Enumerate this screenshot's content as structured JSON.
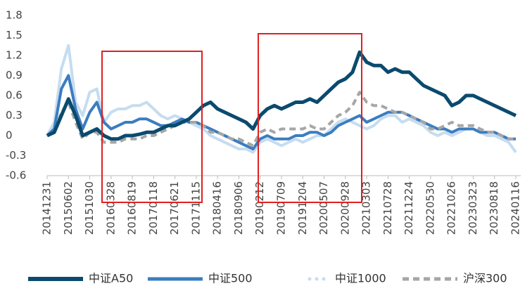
{
  "chart_data": {
    "type": "line",
    "categories": [
      "20141231",
      null,
      null,
      "20150602",
      null,
      null,
      "20151030",
      null,
      null,
      "20160328",
      null,
      null,
      "20160819",
      null,
      null,
      "20170118",
      null,
      null,
      "20170621",
      null,
      null,
      "20171115",
      null,
      null,
      "20180416",
      null,
      null,
      "20180906",
      null,
      null,
      "20190212",
      null,
      null,
      "20190709",
      null,
      null,
      "20191204",
      null,
      null,
      "20200507",
      null,
      null,
      "20200928",
      null,
      null,
      "20210303",
      null,
      null,
      "20210728",
      null,
      null,
      "20211224",
      null,
      null,
      "20220530",
      null,
      null,
      "20221026",
      null,
      null,
      "20230323",
      null,
      null,
      "20230818",
      null,
      null,
      "20240116"
    ],
    "series": [
      {
        "name": "中证A50",
        "color": "#0b4a6e",
        "values": [
          0.0,
          0.05,
          0.3,
          0.55,
          0.3,
          0.0,
          0.05,
          0.1,
          0.0,
          -0.05,
          -0.05,
          0.0,
          0.0,
          0.02,
          0.05,
          0.05,
          0.1,
          0.15,
          0.15,
          0.2,
          0.25,
          0.35,
          0.45,
          0.5,
          0.4,
          0.35,
          0.3,
          0.25,
          0.2,
          0.1,
          0.3,
          0.4,
          0.45,
          0.4,
          0.45,
          0.5,
          0.5,
          0.55,
          0.5,
          0.6,
          0.7,
          0.8,
          0.85,
          0.95,
          1.25,
          1.1,
          1.05,
          1.05,
          0.95,
          1.0,
          0.95,
          0.95,
          0.85,
          0.75,
          0.7,
          0.65,
          0.6,
          0.45,
          0.5,
          0.6,
          0.6,
          0.55,
          0.5,
          0.45,
          0.4,
          0.35,
          0.3
        ]
      },
      {
        "name": "中证500",
        "color": "#3b7dc0",
        "values": [
          0.0,
          0.1,
          0.7,
          0.9,
          0.4,
          0.1,
          0.35,
          0.5,
          0.2,
          0.1,
          0.15,
          0.2,
          0.2,
          0.25,
          0.25,
          0.2,
          0.15,
          0.15,
          0.2,
          0.25,
          0.2,
          0.2,
          0.15,
          0.1,
          0.05,
          0.0,
          -0.05,
          -0.1,
          -0.15,
          -0.2,
          -0.05,
          0.0,
          -0.05,
          -0.05,
          -0.05,
          0.0,
          0.0,
          0.05,
          0.05,
          0.0,
          0.05,
          0.15,
          0.2,
          0.25,
          0.3,
          0.2,
          0.25,
          0.3,
          0.35,
          0.35,
          0.35,
          0.3,
          0.25,
          0.2,
          0.15,
          0.1,
          0.1,
          0.05,
          0.1,
          0.1,
          0.1,
          0.05,
          0.05,
          0.05,
          0.0,
          -0.05,
          -0.05
        ]
      },
      {
        "name": "中证1000",
        "color": "#c6dcf0",
        "values": [
          0.0,
          0.2,
          1.0,
          1.35,
          0.5,
          0.3,
          0.65,
          0.7,
          0.2,
          0.35,
          0.4,
          0.4,
          0.45,
          0.45,
          0.5,
          0.4,
          0.3,
          0.25,
          0.3,
          0.25,
          0.2,
          0.15,
          0.1,
          0.0,
          -0.05,
          -0.1,
          -0.15,
          -0.2,
          -0.2,
          -0.25,
          -0.1,
          -0.05,
          -0.1,
          -0.15,
          -0.1,
          -0.05,
          -0.1,
          -0.05,
          0.0,
          0.0,
          0.1,
          0.2,
          0.25,
          0.2,
          0.15,
          0.1,
          0.15,
          0.25,
          0.3,
          0.3,
          0.2,
          0.25,
          0.2,
          0.15,
          0.05,
          0.0,
          0.05,
          0.0,
          0.05,
          0.1,
          0.1,
          0.05,
          0.0,
          0.0,
          -0.05,
          -0.1,
          -0.25
        ]
      },
      {
        "name": "沪深300",
        "color": "#a6a6a6",
        "dash": "dashed",
        "values": [
          0.0,
          0.05,
          0.35,
          0.5,
          0.2,
          -0.05,
          0.05,
          0.05,
          -0.1,
          -0.1,
          -0.1,
          -0.05,
          -0.05,
          -0.05,
          0.0,
          0.0,
          0.05,
          0.1,
          0.15,
          0.2,
          0.2,
          0.2,
          0.15,
          0.05,
          0.05,
          0.0,
          -0.05,
          -0.05,
          -0.1,
          -0.15,
          0.05,
          0.1,
          0.05,
          0.1,
          0.1,
          0.1,
          0.1,
          0.15,
          0.1,
          0.1,
          0.2,
          0.3,
          0.35,
          0.45,
          0.65,
          0.5,
          0.45,
          0.45,
          0.4,
          0.35,
          0.35,
          0.3,
          0.25,
          0.2,
          0.1,
          0.1,
          0.15,
          0.2,
          0.15,
          0.15,
          0.15,
          0.1,
          0.05,
          0.05,
          0.0,
          -0.05,
          -0.05
        ]
      }
    ],
    "ylim": [
      -0.6,
      1.8
    ],
    "yticks": [
      -0.6,
      -0.3,
      0,
      0.3,
      0.6,
      0.9,
      1.2,
      1.5,
      1.8
    ],
    "grid": false,
    "legend": "bottom"
  }
}
